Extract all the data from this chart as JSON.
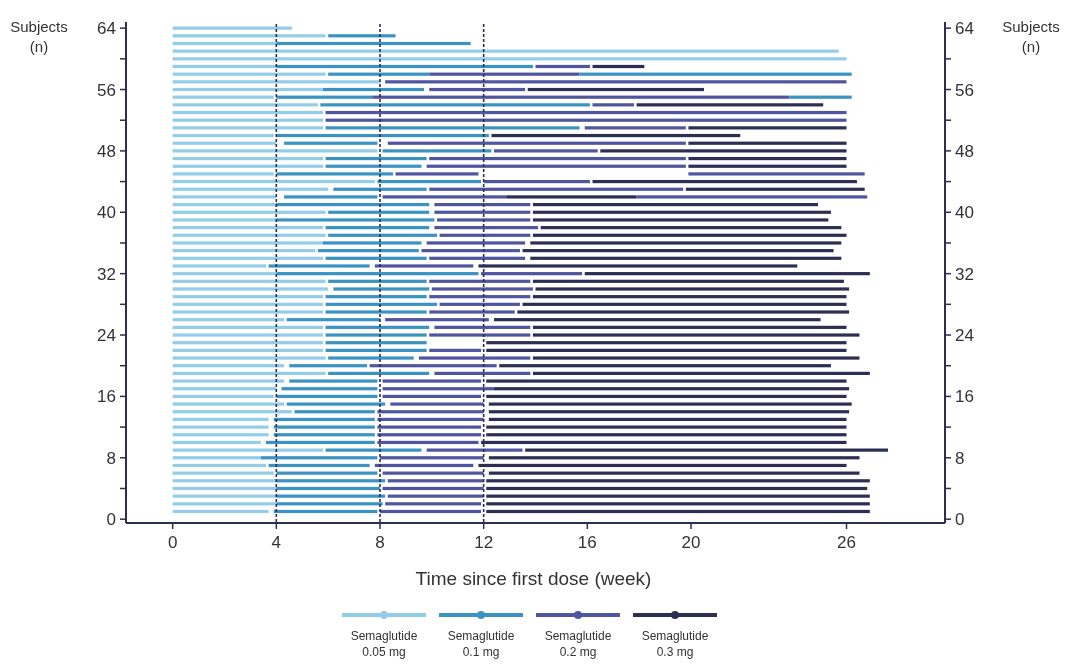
{
  "chart_data": {
    "type": "bar",
    "orientation": "horizontal",
    "xlabel": "Time since first dose (week)",
    "ylabel": "Subjects (n)",
    "y2label": "Subjects (n)",
    "x": [
      1,
      2,
      3,
      4,
      5,
      6,
      7,
      8,
      9,
      10,
      11,
      12,
      13,
      14,
      15,
      16,
      17,
      18,
      19,
      20,
      21,
      22,
      23,
      24,
      25,
      26,
      27,
      28,
      29,
      30,
      31,
      32,
      33,
      34,
      35,
      36,
      37,
      38,
      39,
      40,
      41,
      42,
      43,
      44,
      45,
      46,
      47,
      48,
      49,
      50,
      51,
      52,
      53,
      54,
      55,
      56,
      57,
      58,
      59,
      60,
      61,
      62,
      63,
      64
    ],
    "xlim": [
      -1.8,
      29.8
    ],
    "xticks": [
      0,
      4,
      8,
      12,
      16,
      20,
      26
    ],
    "ylim": [
      -0.5,
      64.8
    ],
    "yticks": [
      0,
      {
        "value": 4,
        "label": null
      },
      8,
      {
        "value": 12,
        "label": null
      },
      16,
      {
        "value": 20,
        "label": null
      },
      24,
      {
        "value": 28,
        "label": null
      },
      32,
      {
        "value": 36,
        "label": null
      },
      40,
      {
        "value": 44,
        "label": null
      },
      48,
      {
        "value": 52,
        "label": null
      },
      56,
      {
        "value": 60,
        "label": null
      },
      64
    ],
    "y2lim": [
      -0.5,
      64.8
    ],
    "y2ticks": [
      0,
      {
        "value": 4,
        "label": null
      },
      8,
      {
        "value": 12,
        "label": null
      },
      16,
      {
        "value": 20,
        "label": null
      },
      24,
      {
        "value": 28,
        "label": null
      },
      32,
      {
        "value": 36,
        "label": null
      },
      40,
      {
        "value": 44,
        "label": null
      },
      48,
      {
        "value": 52,
        "label": null
      },
      56,
      {
        "value": 60,
        "label": null
      },
      64
    ],
    "legend": "bottom",
    "ref_lines": [
      {
        "axis": "x",
        "value": 4,
        "color": "#2b2f52",
        "line_style": "dashed"
      },
      {
        "axis": "x",
        "value": 8,
        "color": "#2b2f52",
        "line_style": "dashed"
      },
      {
        "axis": "x",
        "value": 12,
        "color": "#2b2f52",
        "line_style": "dashed"
      }
    ],
    "series": [
      {
        "name": "Semaglutide 0.05 mg",
        "color": "#93cde8",
        "base": [
          0,
          0,
          0,
          0,
          0,
          0,
          0,
          0,
          0,
          0,
          0,
          0,
          0,
          0,
          0,
          0,
          0,
          0,
          0,
          0,
          0,
          0,
          0,
          0,
          0,
          0,
          0,
          0,
          0,
          0,
          0,
          0,
          0,
          0,
          0,
          0,
          0,
          0,
          0,
          0,
          0,
          0,
          0,
          0,
          0,
          0,
          0,
          0,
          0,
          0,
          0,
          0,
          0,
          0,
          0,
          0,
          0,
          0,
          0,
          0,
          0,
          0,
          0,
          0
        ],
        "values": [
          3.7,
          4.0,
          4.0,
          4.0,
          4.0,
          3.9,
          3.6,
          3.4,
          5.8,
          3.4,
          3.7,
          3.7,
          3.7,
          4.6,
          4.3,
          3.9,
          4.0,
          4.3,
          5.9,
          4.3,
          5.9,
          5.8,
          5.8,
          5.8,
          5.8,
          4.3,
          5.8,
          5.8,
          5.8,
          6.0,
          5.9,
          4.0,
          3.6,
          5.8,
          5.5,
          5.8,
          5.9,
          5.8,
          4.0,
          5.9,
          4.0,
          4.0,
          6.0,
          7.8,
          3.9,
          5.8,
          5.8,
          7.9,
          4.0,
          3.9,
          5.8,
          5.8,
          5.8,
          5.6,
          3.9,
          5.8,
          8.0,
          5.9,
          4.0,
          26.0,
          25.7,
          4.0,
          5.9,
          4.6
        ]
      },
      {
        "name": "Semaglutide 0.1 mg",
        "color": "#3a93c3",
        "base": [
          3.9,
          4.0,
          4.0,
          4.0,
          4.0,
          4.0,
          3.7,
          3.4,
          5.9,
          3.6,
          3.9,
          3.9,
          3.9,
          4.7,
          4.4,
          4.0,
          4.2,
          4.5,
          6.0,
          4.5,
          6.0,
          5.9,
          5.9,
          5.9,
          5.9,
          4.4,
          5.9,
          5.9,
          5.9,
          6.2,
          6.0,
          4.0,
          3.7,
          5.9,
          5.6,
          5.8,
          6.0,
          5.9,
          4.0,
          6.0,
          4.0,
          4.3,
          6.2,
          7.9,
          4.0,
          5.9,
          5.9,
          8.1,
          4.3,
          4.0,
          5.9,
          null,
          null,
          5.7,
          4.0,
          5.8,
          null,
          6.0,
          4.0,
          null,
          null,
          4.0,
          6.0,
          null
        ],
        "values": [
          4.0,
          4.1,
          4.2,
          4.0,
          4.2,
          3.9,
          3.9,
          4.5,
          3.7,
          4.2,
          3.9,
          3.9,
          3.9,
          3.1,
          3.8,
          3.9,
          3.7,
          3.4,
          3.9,
          3.0,
          3.3,
          3.9,
          3.9,
          3.9,
          4.0,
          3.6,
          3.9,
          4.3,
          3.9,
          3.7,
          3.8,
          7.8,
          3.9,
          3.9,
          3.9,
          3.8,
          4.2,
          4.0,
          6.1,
          3.9,
          5.9,
          3.6,
          3.6,
          4.0,
          4.5,
          3.7,
          3.9,
          4.2,
          3.6,
          8.2,
          9.8,
          null,
          null,
          10.4,
          3.7,
          3.9,
          null,
          3.9,
          9.9,
          null,
          null,
          7.5,
          2.6,
          null
        ]
      },
      {
        "name": "Semaglutide 0.2 mg",
        "color": "#4f559e",
        "base": [
          8.0,
          8.2,
          8.3,
          8.1,
          8.3,
          8.1,
          7.8,
          8.0,
          9.8,
          7.9,
          7.9,
          7.9,
          7.9,
          7.9,
          8.4,
          8.1,
          8.1,
          8.1,
          10.1,
          7.6,
          9.5,
          9.9,
          null,
          9.9,
          10.1,
          8.2,
          9.9,
          10.3,
          9.9,
          10.0,
          9.9,
          11.9,
          7.8,
          9.9,
          9.6,
          9.8,
          10.3,
          10.1,
          10.2,
          10.1,
          10.1,
          8.1,
          9.9,
          12.0,
          8.6,
          9.8,
          9.9,
          12.4,
          8.3,
          null,
          15.9,
          5.9,
          5.9,
          16.2,
          7.7,
          9.9,
          8.2,
          9.9,
          14.0,
          null,
          null,
          null,
          null,
          null
        ],
        "values": [
          3.9,
          3.7,
          3.7,
          3.9,
          3.7,
          3.9,
          3.8,
          4.0,
          3.7,
          3.9,
          4.0,
          4.0,
          4.1,
          4.1,
          3.6,
          3.8,
          4.3,
          3.8,
          3.7,
          4.9,
          4.3,
          2.0,
          null,
          3.9,
          3.7,
          4.0,
          3.3,
          3.1,
          3.9,
          3.9,
          3.9,
          3.9,
          3.8,
          3.7,
          3.8,
          3.8,
          3.5,
          4.0,
          3.6,
          3.7,
          3.7,
          4.8,
          9.8,
          4.1,
          3.2,
          10.0,
          9.9,
          4.0,
          11.5,
          null,
          3.9,
          20.1,
          20.1,
          1.6,
          16.1,
          3.7,
          17.8,
          5.8,
          2.1,
          null,
          null,
          null,
          null,
          null
        ]
      },
      {
        "name": "Semaglutide 0.3 mg",
        "color": "#2b2f52",
        "base": [
          12.1,
          12.1,
          12.1,
          12.1,
          12.1,
          12.2,
          11.8,
          12.2,
          13.6,
          11.9,
          12.1,
          12.1,
          12.2,
          12.2,
          12.2,
          12.1,
          12.4,
          12.1,
          13.9,
          12.6,
          13.9,
          12.1,
          12.1,
          13.9,
          13.9,
          12.4,
          13.3,
          13.5,
          13.9,
          14.0,
          13.9,
          15.9,
          11.8,
          13.8,
          13.5,
          13.8,
          13.9,
          14.2,
          13.9,
          13.9,
          13.9,
          12.9,
          19.8,
          16.2,
          null,
          19.9,
          19.9,
          16.5,
          19.9,
          12.3,
          19.9,
          null,
          null,
          17.9,
          null,
          13.7,
          null,
          null,
          16.2,
          null,
          null,
          null,
          null,
          null
        ],
        "values": [
          14.8,
          14.8,
          14.8,
          14.7,
          14.8,
          14.3,
          14.2,
          14.3,
          14.0,
          14.1,
          13.9,
          13.9,
          13.8,
          13.9,
          14.0,
          13.9,
          13.7,
          13.9,
          13.0,
          12.8,
          12.6,
          13.9,
          13.9,
          12.6,
          12.1,
          12.6,
          12.8,
          12.5,
          12.1,
          12.1,
          12.0,
          11.0,
          12.3,
          12.0,
          12.0,
          12.0,
          12.1,
          11.6,
          11.4,
          11.5,
          11.0,
          5.0,
          6.9,
          10.2,
          null,
          6.1,
          6.1,
          9.5,
          6.1,
          9.6,
          6.1,
          null,
          null,
          7.2,
          null,
          6.8,
          null,
          null,
          2.0,
          null,
          null,
          null,
          null,
          null
        ]
      },
      {
        "color": "#3a93c3",
        "base": [
          null,
          null,
          null,
          null,
          null,
          null,
          null,
          null,
          null,
          null,
          null,
          null,
          null,
          null,
          null,
          null,
          null,
          null,
          null,
          null,
          null,
          null,
          null,
          null,
          null,
          null,
          null,
          null,
          null,
          null,
          null,
          null,
          null,
          null,
          null,
          null,
          null,
          null,
          null,
          null,
          null,
          null,
          null,
          null,
          null,
          null,
          null,
          null,
          null,
          null,
          null,
          null,
          null,
          null,
          23.8,
          null,
          null,
          15.7,
          null,
          null,
          null,
          null,
          null,
          null
        ],
        "values": [
          null,
          null,
          null,
          null,
          null,
          null,
          null,
          null,
          null,
          null,
          null,
          null,
          null,
          null,
          null,
          null,
          null,
          null,
          null,
          null,
          null,
          null,
          null,
          null,
          null,
          null,
          null,
          null,
          null,
          null,
          null,
          null,
          null,
          null,
          null,
          null,
          null,
          null,
          null,
          null,
          null,
          null,
          null,
          null,
          null,
          null,
          null,
          null,
          null,
          null,
          null,
          null,
          null,
          null,
          2.4,
          null,
          null,
          10.5,
          null,
          null,
          null,
          null,
          null,
          null
        ]
      },
      {
        "color": "#4f559e",
        "base": [
          null,
          null,
          null,
          null,
          null,
          null,
          null,
          null,
          null,
          null,
          null,
          null,
          null,
          null,
          null,
          null,
          null,
          null,
          null,
          null,
          null,
          null,
          null,
          null,
          null,
          null,
          null,
          null,
          null,
          null,
          null,
          null,
          null,
          null,
          null,
          null,
          null,
          null,
          null,
          null,
          null,
          17.9,
          null,
          null,
          19.9,
          null,
          null,
          null,
          null,
          null,
          null,
          null,
          null,
          null,
          null,
          null,
          null,
          null,
          null,
          null,
          null,
          null,
          null,
          null
        ],
        "values": [
          null,
          null,
          null,
          null,
          null,
          null,
          null,
          null,
          null,
          null,
          null,
          null,
          null,
          null,
          null,
          null,
          null,
          null,
          null,
          null,
          null,
          null,
          null,
          null,
          null,
          null,
          null,
          null,
          null,
          null,
          null,
          null,
          null,
          null,
          null,
          null,
          null,
          null,
          null,
          null,
          null,
          8.9,
          null,
          null,
          6.8,
          null,
          null,
          null,
          null,
          null,
          null,
          null,
          null,
          null,
          null,
          null,
          null,
          null,
          null,
          null,
          null,
          null,
          null,
          null
        ]
      }
    ]
  }
}
